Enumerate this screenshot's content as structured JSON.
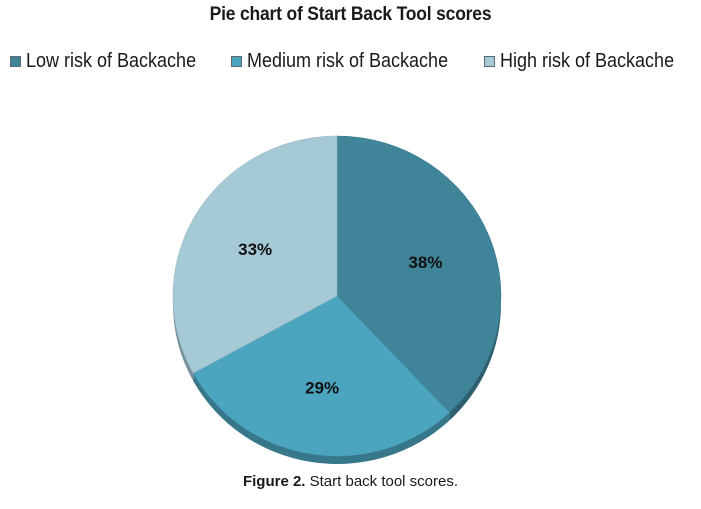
{
  "chart_data": {
    "type": "pie",
    "title": "Pie chart of Start Back Tool scores",
    "series": [
      {
        "name": "Low risk of Backache",
        "value": 38,
        "label": "38%",
        "color": "#3f8499"
      },
      {
        "name": "Medium risk of Backache",
        "value": 29,
        "label": "29%",
        "color": "#4ba5bf"
      },
      {
        "name": "High risk of Backache",
        "value": 33,
        "label": "33%",
        "color": "#a6c9d6"
      }
    ],
    "legend_position": "top"
  },
  "caption": {
    "label": "Figure 2.",
    "text": " Start back tool scores."
  }
}
